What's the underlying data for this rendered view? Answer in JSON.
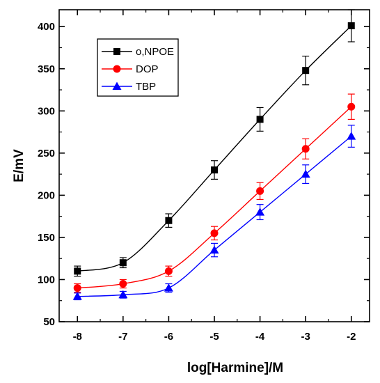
{
  "chart_data": {
    "type": "line",
    "xlabel": "log[Harmine]/M",
    "ylabel": "E/mV",
    "xlim": [
      -8.4,
      -1.6
    ],
    "ylim": [
      50,
      420
    ],
    "x_ticks": [
      -8,
      -7,
      -6,
      -5,
      -4,
      -3,
      -2
    ],
    "y_ticks": [
      50,
      100,
      150,
      200,
      250,
      300,
      350,
      400
    ],
    "grid": false,
    "legend_position": "top-left",
    "series": [
      {
        "name": "o,NPOE",
        "color": "#000000",
        "marker": "square",
        "x": [
          -8,
          -7,
          -6,
          -5,
          -4,
          -3,
          -2
        ],
        "y": [
          110,
          120,
          170,
          230,
          290,
          348,
          401
        ],
        "error": [
          6,
          6,
          8,
          11,
          14,
          17,
          19
        ]
      },
      {
        "name": "DOP",
        "color": "#ff0000",
        "marker": "circle",
        "x": [
          -8,
          -7,
          -6,
          -5,
          -4,
          -3,
          -2
        ],
        "y": [
          90,
          95,
          110,
          155,
          205,
          255,
          305
        ],
        "error": [
          5,
          5,
          6,
          8,
          10,
          12,
          15
        ]
      },
      {
        "name": "TBP",
        "color": "#0000ff",
        "marker": "triangle",
        "x": [
          -8,
          -7,
          -6,
          -5,
          -4,
          -3,
          -2
        ],
        "y": [
          80,
          82,
          90,
          135,
          180,
          225,
          270
        ],
        "error": [
          4,
          4,
          5,
          8,
          9,
          11,
          13
        ]
      }
    ]
  }
}
